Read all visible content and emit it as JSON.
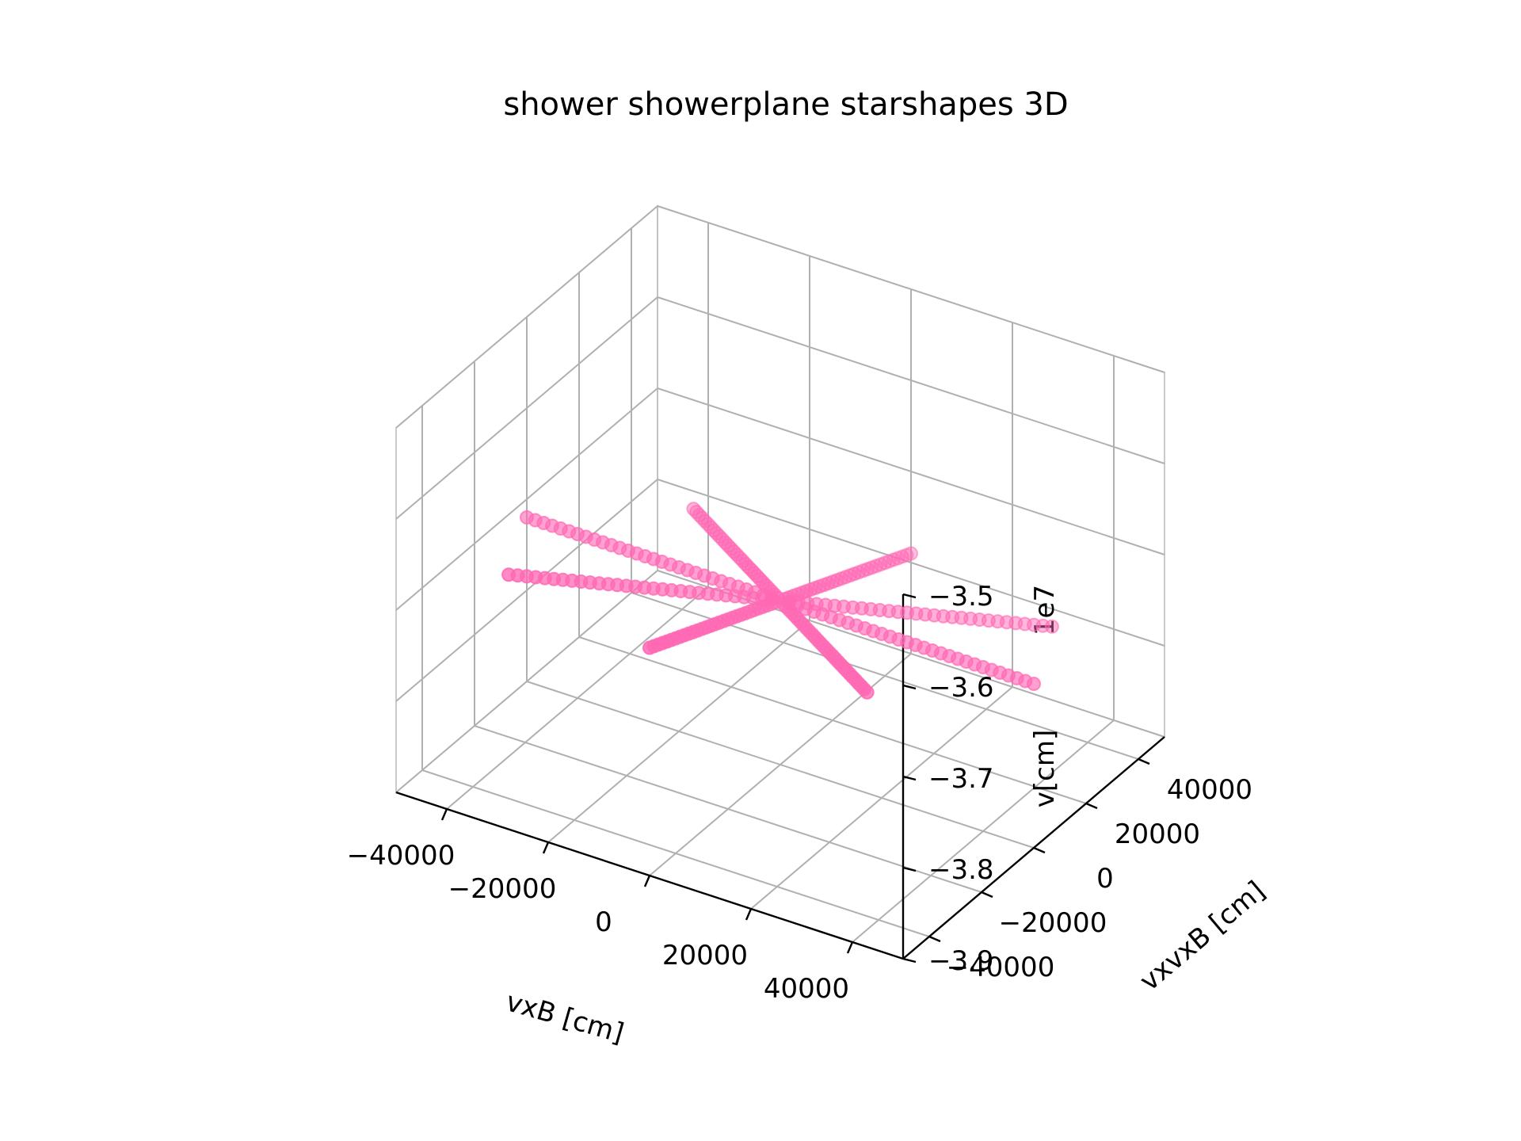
{
  "chart_data": {
    "type": "scatter",
    "title": "shower showerplane starshapes 3D",
    "xlabel": "vxB [cm]",
    "ylabel": "vxvxB [cm]",
    "zlabel": "v[cm]",
    "z_offset_label": "1e7",
    "x_ticks": [
      "−40000",
      "−20000",
      "0",
      "20000",
      "40000"
    ],
    "y_ticks": [
      "−40000",
      "−20000",
      "0",
      "20000",
      "40000"
    ],
    "z_ticks": [
      "−3.9",
      "−3.8",
      "−3.7",
      "−3.6",
      "−3.5"
    ],
    "x_tick_values": [
      -40000,
      -20000,
      0,
      20000,
      40000
    ],
    "y_tick_values": [
      -40000,
      -20000,
      0,
      20000,
      40000
    ],
    "z_tick_values": [
      -39000000,
      -38000000,
      -37000000,
      -36000000,
      -35000000
    ],
    "xlim": [
      -50000,
      50000
    ],
    "ylim": [
      -50000,
      50000
    ],
    "zlim": [
      -39000000,
      -35000000
    ],
    "grid": true,
    "marker": "circle",
    "marker_color": "#ff69b4",
    "arms": {
      "count": 8,
      "points_per_arm": 30,
      "max_radius": 50000,
      "center": [
        0,
        0,
        -37200000
      ],
      "z_per_unit_radius": [
        0,
        -10,
        -14,
        -10,
        0,
        10,
        14,
        10
      ],
      "angles_deg": [
        0,
        45,
        90,
        135,
        180,
        225,
        270,
        315
      ]
    }
  }
}
